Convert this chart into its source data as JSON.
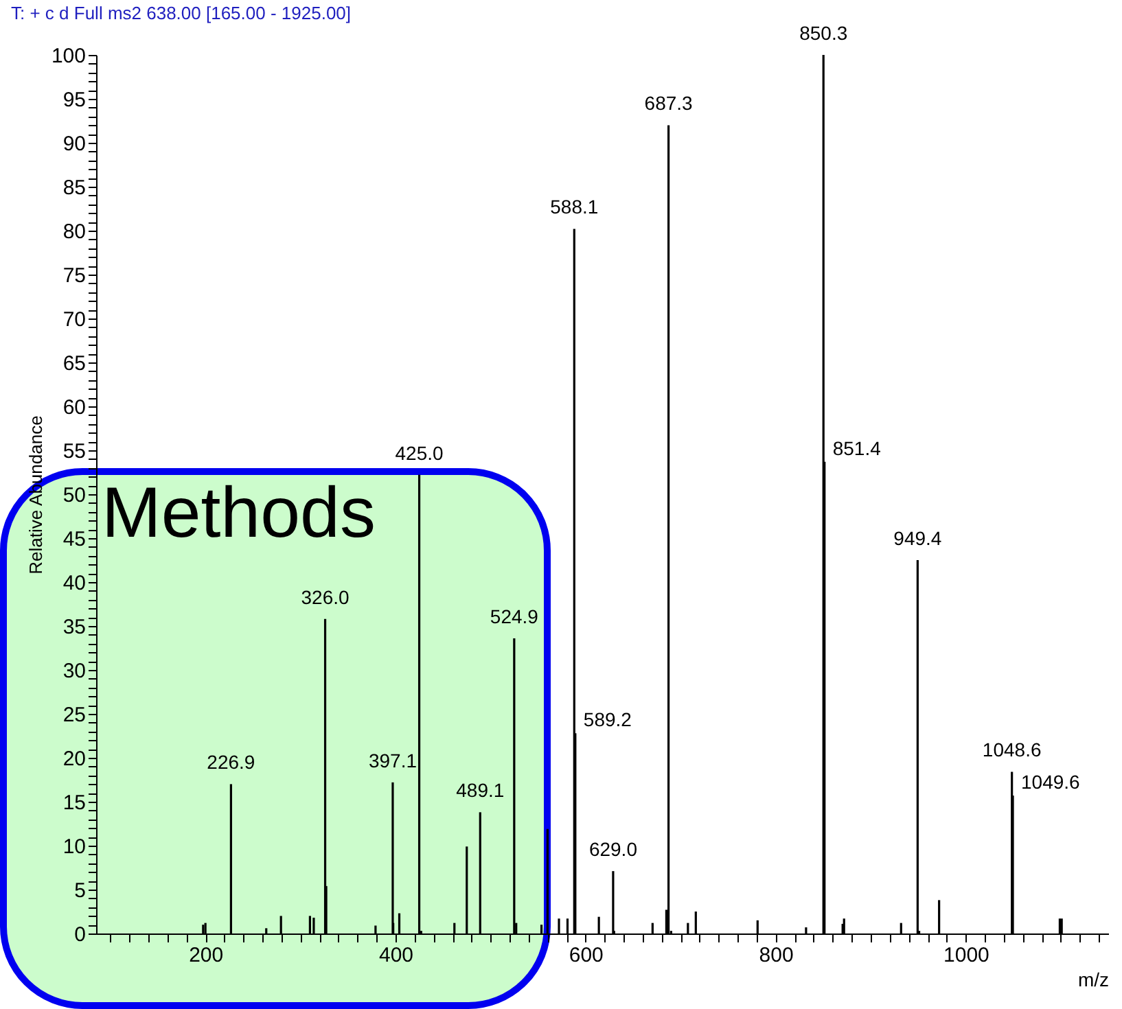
{
  "chart_data": {
    "type": "bar",
    "title": "T: + c d Full ms2 638.00 [165.00 - 1925.00]",
    "xlabel": "m/z",
    "ylabel": "Relative Abundance",
    "color": "#000000",
    "x": [
      197.6,
      200,
      226.9,
      264,
      279.5,
      310,
      314,
      326.0,
      327.1,
      379,
      397.1,
      397.6,
      404,
      425.0,
      427,
      462,
      475,
      489.1,
      524.9,
      527,
      553.6,
      560,
      572,
      581,
      588.1,
      589.2,
      614,
      629.0,
      630,
      670.5,
      685,
      687.3,
      690,
      707.7,
      716,
      781,
      832,
      850.3,
      851.4,
      870.5,
      872,
      932,
      949.4,
      951,
      972,
      1048.6,
      1049.6,
      1099,
      1101
    ],
    "values": [
      1.0,
      1.2,
      17.0,
      0.6,
      2.0,
      2.0,
      1.8,
      35.8,
      5.4,
      0.9,
      17.2,
      1.2,
      2.3,
      52.2,
      0.3,
      1.2,
      9.9,
      13.8,
      33.6,
      1.2,
      1.0,
      11.9,
      1.7,
      1.7,
      80.2,
      22.8,
      1.9,
      7.1,
      0.3,
      1.2,
      2.7,
      92.0,
      0.3,
      1.2,
      2.5,
      1.5,
      0.7,
      100,
      53.7,
      1.1,
      1.7,
      1.2,
      42.5,
      0.3,
      3.8,
      18.4,
      15.7,
      1.7,
      1.7
    ],
    "xlim": [
      85,
      1150
    ],
    "xticks": [
      {
        "value": 100,
        "label": null
      },
      {
        "value": 120,
        "label": null
      },
      {
        "value": 140,
        "label": null
      },
      {
        "value": 160,
        "label": null
      },
      {
        "value": 180,
        "label": null
      },
      200,
      {
        "value": 220,
        "label": null
      },
      {
        "value": 240,
        "label": null
      },
      {
        "value": 260,
        "label": null
      },
      {
        "value": 280,
        "label": null
      },
      {
        "value": 300,
        "label": null
      },
      {
        "value": 320,
        "label": null
      },
      {
        "value": 340,
        "label": null
      },
      {
        "value": 360,
        "label": null
      },
      {
        "value": 380,
        "label": null
      },
      400,
      {
        "value": 420,
        "label": null
      },
      {
        "value": 440,
        "label": null
      },
      {
        "value": 460,
        "label": null
      },
      {
        "value": 480,
        "label": null
      },
      {
        "value": 500,
        "label": null
      },
      {
        "value": 520,
        "label": null
      },
      {
        "value": 540,
        "label": null
      },
      {
        "value": 560,
        "label": null
      },
      {
        "value": 580,
        "label": null
      },
      600,
      {
        "value": 620,
        "label": null
      },
      {
        "value": 640,
        "label": null
      },
      {
        "value": 660,
        "label": null
      },
      {
        "value": 680,
        "label": null
      },
      {
        "value": 700,
        "label": null
      },
      {
        "value": 720,
        "label": null
      },
      {
        "value": 740,
        "label": null
      },
      {
        "value": 760,
        "label": null
      },
      {
        "value": 780,
        "label": null
      },
      800,
      {
        "value": 820,
        "label": null
      },
      {
        "value": 840,
        "label": null
      },
      {
        "value": 860,
        "label": null
      },
      {
        "value": 880,
        "label": null
      },
      {
        "value": 900,
        "label": null
      },
      {
        "value": 920,
        "label": null
      },
      {
        "value": 940,
        "label": null
      },
      {
        "value": 960,
        "label": null
      },
      {
        "value": 980,
        "label": null
      },
      1000,
      {
        "value": 1020,
        "label": null
      },
      {
        "value": 1040,
        "label": null
      },
      {
        "value": 1060,
        "label": null
      },
      {
        "value": 1080,
        "label": null
      },
      {
        "value": 1100,
        "label": null
      },
      {
        "value": 1120,
        "label": null
      },
      {
        "value": 1140,
        "label": null
      }
    ],
    "ylim": [
      0,
      100
    ],
    "yticks": [
      0,
      {
        "value": 1,
        "label": null
      },
      {
        "value": 2,
        "label": null
      },
      {
        "value": 3,
        "label": null
      },
      {
        "value": 4,
        "label": null
      },
      5,
      {
        "value": 6,
        "label": null
      },
      {
        "value": 7,
        "label": null
      },
      {
        "value": 8,
        "label": null
      },
      {
        "value": 9,
        "label": null
      },
      10,
      {
        "value": 11,
        "label": null
      },
      {
        "value": 12,
        "label": null
      },
      {
        "value": 13,
        "label": null
      },
      {
        "value": 14,
        "label": null
      },
      15,
      {
        "value": 16,
        "label": null
      },
      {
        "value": 17,
        "label": null
      },
      {
        "value": 18,
        "label": null
      },
      {
        "value": 19,
        "label": null
      },
      20,
      {
        "value": 21,
        "label": null
      },
      {
        "value": 22,
        "label": null
      },
      {
        "value": 23,
        "label": null
      },
      {
        "value": 24,
        "label": null
      },
      25,
      {
        "value": 26,
        "label": null
      },
      {
        "value": 27,
        "label": null
      },
      {
        "value": 28,
        "label": null
      },
      {
        "value": 29,
        "label": null
      },
      30,
      {
        "value": 31,
        "label": null
      },
      {
        "value": 32,
        "label": null
      },
      {
        "value": 33,
        "label": null
      },
      {
        "value": 34,
        "label": null
      },
      35,
      {
        "value": 36,
        "label": null
      },
      {
        "value": 37,
        "label": null
      },
      {
        "value": 38,
        "label": null
      },
      {
        "value": 39,
        "label": null
      },
      40,
      {
        "value": 41,
        "label": null
      },
      {
        "value": 42,
        "label": null
      },
      {
        "value": 43,
        "label": null
      },
      {
        "value": 44,
        "label": null
      },
      45,
      {
        "value": 46,
        "label": null
      },
      {
        "value": 47,
        "label": null
      },
      {
        "value": 48,
        "label": null
      },
      {
        "value": 49,
        "label": null
      },
      50,
      {
        "value": 51,
        "label": null
      },
      {
        "value": 52,
        "label": null
      },
      {
        "value": 53,
        "label": null
      },
      {
        "value": 54,
        "label": null
      },
      55,
      {
        "value": 56,
        "label": null
      },
      {
        "value": 57,
        "label": null
      },
      {
        "value": 58,
        "label": null
      },
      {
        "value": 59,
        "label": null
      },
      60,
      {
        "value": 61,
        "label": null
      },
      {
        "value": 62,
        "label": null
      },
      {
        "value": 63,
        "label": null
      },
      {
        "value": 64,
        "label": null
      },
      65,
      {
        "value": 66,
        "label": null
      },
      {
        "value": 67,
        "label": null
      },
      {
        "value": 68,
        "label": null
      },
      {
        "value": 69,
        "label": null
      },
      70,
      {
        "value": 71,
        "label": null
      },
      {
        "value": 72,
        "label": null
      },
      {
        "value": 73,
        "label": null
      },
      {
        "value": 74,
        "label": null
      },
      75,
      {
        "value": 76,
        "label": null
      },
      {
        "value": 77,
        "label": null
      },
      {
        "value": 78,
        "label": null
      },
      {
        "value": 79,
        "label": null
      },
      80,
      {
        "value": 81,
        "label": null
      },
      {
        "value": 82,
        "label": null
      },
      {
        "value": 83,
        "label": null
      },
      {
        "value": 84,
        "label": null
      },
      85,
      {
        "value": 86,
        "label": null
      },
      {
        "value": 87,
        "label": null
      },
      {
        "value": 88,
        "label": null
      },
      {
        "value": 89,
        "label": null
      },
      90,
      {
        "value": 91,
        "label": null
      },
      {
        "value": 92,
        "label": null
      },
      {
        "value": 93,
        "label": null
      },
      {
        "value": 94,
        "label": null
      },
      95,
      {
        "value": 96,
        "label": null
      },
      {
        "value": 97,
        "label": null
      },
      {
        "value": 98,
        "label": null
      },
      {
        "value": 99,
        "label": null
      },
      100
    ],
    "annotations": [
      "Methods",
      {
        "text": "226.9",
        "x": 226.9,
        "y": 17.0
      },
      {
        "text": "326.0",
        "x": 326.0,
        "y": 35.8
      },
      {
        "text": "397.1",
        "x": 397.1,
        "y": 17.2
      },
      {
        "text": "425.0",
        "x": 425.0,
        "y": 52.2
      },
      {
        "text": "489.1",
        "x": 489.1,
        "y": 13.8
      },
      {
        "text": "524.9",
        "x": 524.9,
        "y": 33.6
      },
      {
        "text": "588.1",
        "x": 588.1,
        "y": 80.2
      },
      {
        "text": "589.2",
        "x": 589.2,
        "y": 22.8
      },
      {
        "text": "629.0",
        "x": 629.0,
        "y": 7.1
      },
      {
        "text": "687.3",
        "x": 687.3,
        "y": 92.0
      },
      {
        "text": "850.3",
        "x": 850.3,
        "y": 100
      },
      {
        "text": "851.4",
        "x": 851.4,
        "y": 53.7
      },
      {
        "text": "949.4",
        "x": 949.4,
        "y": 42.5
      },
      {
        "text": "1048.6",
        "x": 1048.6,
        "y": 18.4
      },
      {
        "text": "1049.6",
        "x": 1049.6,
        "y": 15.7
      }
    ]
  }
}
